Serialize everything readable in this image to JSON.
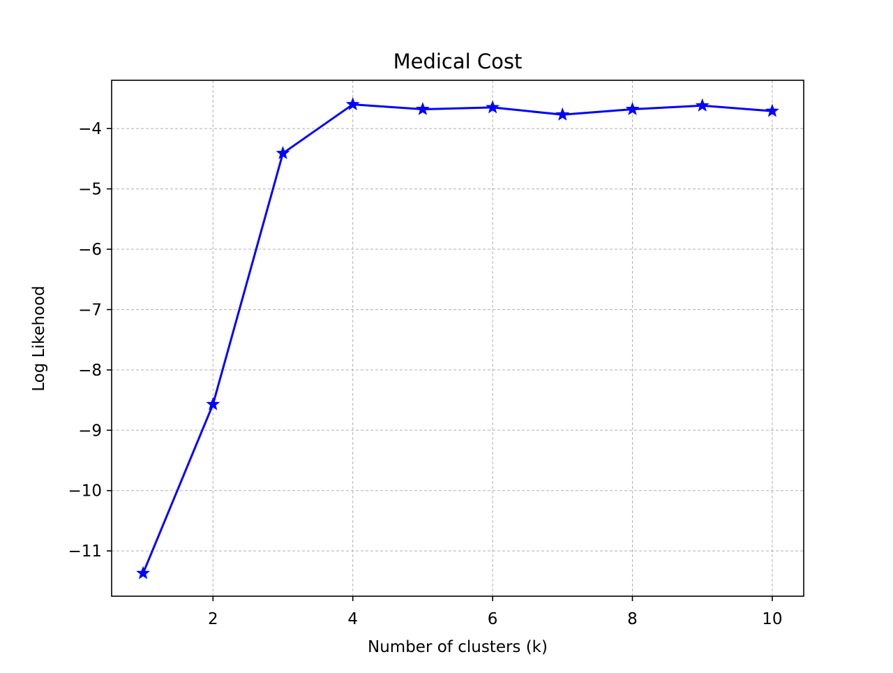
{
  "chart_data": {
    "type": "line",
    "title": "Medical Cost",
    "xlabel": "Number of clusters (k)",
    "ylabel": "Log Likehood",
    "x": [
      1,
      2,
      3,
      4,
      5,
      6,
      7,
      8,
      9,
      10
    ],
    "series": [
      {
        "values": [
          -11.37,
          -8.57,
          -4.41,
          -3.6,
          -3.68,
          -3.65,
          -3.77,
          -3.68,
          -3.62,
          -3.71
        ],
        "color": "#0000ff",
        "marker": "star"
      }
    ],
    "xlim": [
      0.55,
      10.45
    ],
    "ylim": [
      -11.75,
      -3.2
    ],
    "xticks": [
      2,
      4,
      6,
      8,
      10
    ],
    "xtick_labels": [
      "2",
      "4",
      "6",
      "8",
      "10"
    ],
    "yticks": [
      -11,
      -10,
      -9,
      -8,
      -7,
      -6,
      -5,
      -4
    ],
    "ytick_labels": [
      "−11",
      "−10",
      "−9",
      "−8",
      "−7",
      "−6",
      "−5",
      "−4"
    ],
    "grid": true,
    "grid_style": "dashed",
    "legend": false
  }
}
